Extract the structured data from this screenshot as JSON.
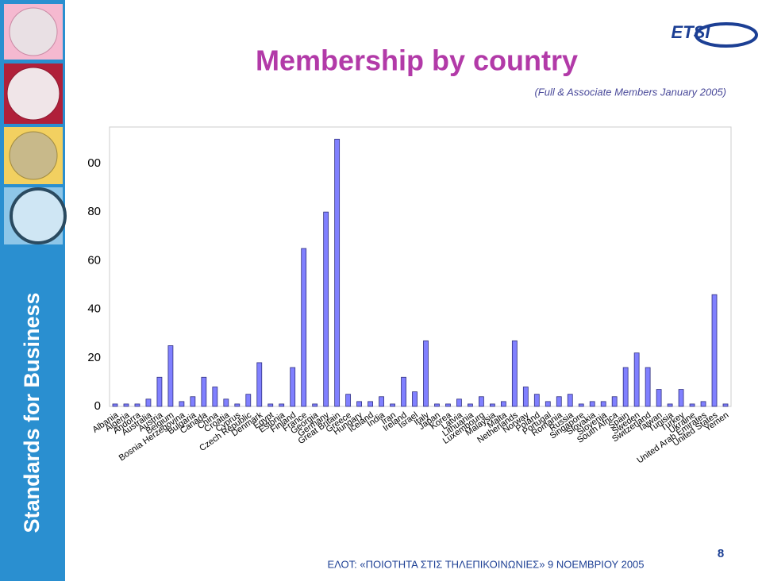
{
  "slide": {
    "sidebar_text": "Standards for Business",
    "logo": "ETSI",
    "footer": "ΕΛΟΤ: «ΠΟΙΟΤΗΤΑ ΣΤΙΣ ΤΗΛΕΠΙΚΟΙΝΩΝΙΕΣ» 9 ΝΟΕΜΒΡΙΟΥ 2005",
    "page_number": "8"
  },
  "chart_data": {
    "type": "bar",
    "title": "Membership by country",
    "subtitle": "(Full & Associate Members January 2005)",
    "categories": [
      "Albania",
      "Algeria",
      "Andorra",
      "Australia",
      "Austria",
      "Belgium",
      "Bosnia Herzegovina",
      "Bulgaria",
      "Canada",
      "China",
      "Croatia",
      "Cyprus",
      "Czech Republic",
      "Denmark",
      "Egypt",
      "Estonia",
      "Finland",
      "France",
      "Georgia",
      "Germany",
      "Great Britain",
      "Greece",
      "Hungary",
      "Iceland",
      "India",
      "Iran",
      "Ireland",
      "Israel",
      "Italy",
      "Japan",
      "Korea",
      "Latvia",
      "Lithuania",
      "Luxembourg",
      "Malaysia",
      "Malta",
      "Netherlands",
      "Norway",
      "Poland",
      "Portugal",
      "Romania",
      "Russia",
      "Singapore",
      "Slovakia",
      "Slovenia",
      "South Africa",
      "Spain",
      "Sweden",
      "Switzerland",
      "Taiwan",
      "Tunisia",
      "Turkey",
      "Ukraine",
      "United Arab Emirates",
      "United States",
      "Yemen"
    ],
    "values": [
      1,
      1,
      1,
      3,
      12,
      25,
      2,
      4,
      12,
      8,
      3,
      1,
      5,
      18,
      1,
      1,
      16,
      65,
      1,
      80,
      110,
      5,
      2,
      2,
      4,
      1,
      12,
      6,
      27,
      1,
      1,
      3,
      1,
      4,
      1,
      2,
      27,
      8,
      5,
      2,
      4,
      5,
      1,
      2,
      2,
      4,
      16,
      22,
      16,
      7,
      1,
      7,
      1,
      2,
      46,
      1
    ],
    "color": "#8080ff",
    "ylim": [
      0,
      115
    ],
    "yticks": [
      0,
      20,
      40,
      60,
      80,
      {
        "value": 100,
        "label": "00"
      }
    ],
    "grid": false
  }
}
